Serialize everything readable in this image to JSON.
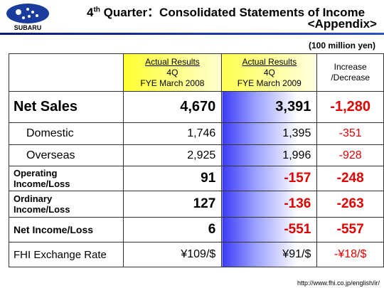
{
  "header": {
    "logo_text": "SUBARU",
    "title_number": "4",
    "title_suffix": "th",
    "title_rest": " Quarter：Consolidated Statements of Income",
    "subtitle": "<Appendix>"
  },
  "unit": "(100 million yen)",
  "table": {
    "columns": [
      [
        "Actual Results",
        "4Q",
        "FYE March 2008"
      ],
      [
        "Actual Results",
        "4Q",
        "FYE March 2009"
      ],
      [
        "Increase",
        "/Decrease"
      ]
    ],
    "rows": [
      [
        [
          "Net Sales"
        ],
        "4,670",
        "3,391",
        "-1,280"
      ],
      [
        [
          "Domestic"
        ],
        "1,746",
        "1,395",
        "-351"
      ],
      [
        [
          "Overseas"
        ],
        "2,925",
        "1,996",
        "-928"
      ],
      [
        [
          "Operating",
          "Income/Loss"
        ],
        "91",
        "-157",
        "-248"
      ],
      [
        [
          "Ordinary",
          "Income/Loss"
        ],
        "127",
        "-136",
        "-263"
      ],
      [
        [
          "Net Income/Loss"
        ],
        "6",
        "-551",
        "-557"
      ],
      [
        [
          "FHI Exchange Rate"
        ],
        "¥109/$",
        "¥91/$",
        "-¥18/$"
      ]
    ]
  },
  "footer": {
    "url": "http://www.fhi.co.jp/english/ir/"
  }
}
